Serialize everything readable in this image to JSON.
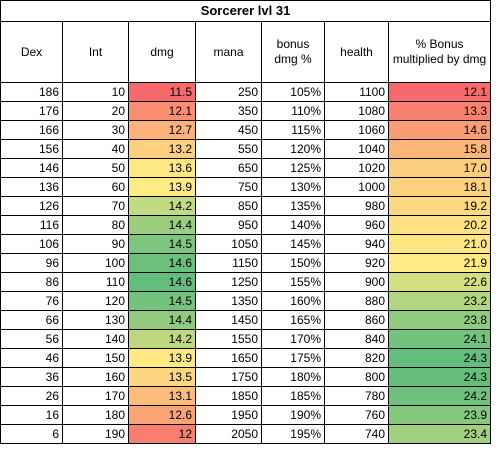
{
  "title": "Sorcerer lvl 31",
  "headers": [
    "Dex",
    "Int",
    "dmg",
    "mana",
    "bonus dmg %",
    "health",
    "% Bonus multiplied by dmg"
  ],
  "rows": [
    {
      "dex": "186",
      "int": "10",
      "dmg": "11.5",
      "mana": "250",
      "bonus": "105%",
      "health": "1100",
      "mult": "12.1",
      "dmg_color": "#f8696b",
      "mult_color": "#f8696b"
    },
    {
      "dex": "176",
      "int": "20",
      "dmg": "12.1",
      "mana": "350",
      "bonus": "110%",
      "health": "1080",
      "mult": "13.3",
      "dmg_color": "#fa8e72",
      "mult_color": "#f98170"
    },
    {
      "dex": "166",
      "int": "30",
      "dmg": "12.7",
      "mana": "450",
      "bonus": "115%",
      "health": "1060",
      "mult": "14.6",
      "dmg_color": "#fcb27a",
      "mult_color": "#fa9d75"
    },
    {
      "dex": "156",
      "int": "40",
      "dmg": "13.2",
      "mana": "550",
      "bonus": "120%",
      "health": "1040",
      "mult": "15.8",
      "dmg_color": "#fdd07f",
      "mult_color": "#fbb579"
    },
    {
      "dex": "146",
      "int": "50",
      "dmg": "13.6",
      "mana": "650",
      "bonus": "125%",
      "health": "1020",
      "mult": "17.0",
      "dmg_color": "#fee883",
      "mult_color": "#fccd7e"
    },
    {
      "dex": "136",
      "int": "60",
      "dmg": "13.9",
      "mana": "750",
      "bonus": "130%",
      "health": "1000",
      "mult": "18.1",
      "dmg_color": "#ffeb84",
      "mult_color": "#fdd27f"
    },
    {
      "dex": "126",
      "int": "70",
      "dmg": "14.2",
      "mana": "850",
      "bonus": "135%",
      "health": "980",
      "mult": "19.2",
      "dmg_color": "#c2da81",
      "mult_color": "#fed881"
    },
    {
      "dex": "116",
      "int": "80",
      "dmg": "14.4",
      "mana": "950",
      "bonus": "140%",
      "health": "960",
      "mult": "20.2",
      "dmg_color": "#9bce7f",
      "mult_color": "#fee182"
    },
    {
      "dex": "106",
      "int": "90",
      "dmg": "14.5",
      "mana": "1050",
      "bonus": "145%",
      "health": "940",
      "mult": "21.0",
      "dmg_color": "#7dc67d",
      "mult_color": "#ffe683"
    },
    {
      "dex": "96",
      "int": "100",
      "dmg": "14.6",
      "mana": "1150",
      "bonus": "150%",
      "health": "920",
      "mult": "21.9",
      "dmg_color": "#6bc17c",
      "mult_color": "#ffeb84"
    },
    {
      "dex": "86",
      "int": "110",
      "dmg": "14.6",
      "mana": "1250",
      "bonus": "155%",
      "health": "900",
      "mult": "22.6",
      "dmg_color": "#63be7b",
      "mult_color": "#d4df82"
    },
    {
      "dex": "76",
      "int": "120",
      "dmg": "14.5",
      "mana": "1350",
      "bonus": "160%",
      "health": "880",
      "mult": "23.2",
      "dmg_color": "#74c37d",
      "mult_color": "#b2d580"
    },
    {
      "dex": "66",
      "int": "130",
      "dmg": "14.4",
      "mana": "1450",
      "bonus": "165%",
      "health": "860",
      "mult": "23.8",
      "dmg_color": "#92cb7e",
      "mult_color": "#8ecb7e"
    },
    {
      "dex": "56",
      "int": "140",
      "dmg": "14.2",
      "mana": "1550",
      "bonus": "170%",
      "health": "840",
      "mult": "24.1",
      "dmg_color": "#bdd881",
      "mult_color": "#74c37d"
    },
    {
      "dex": "46",
      "int": "150",
      "dmg": "13.9",
      "mana": "1650",
      "bonus": "175%",
      "health": "820",
      "mult": "24.3",
      "dmg_color": "#fee983",
      "mult_color": "#63be7b"
    },
    {
      "dex": "36",
      "int": "160",
      "dmg": "13.5",
      "mana": "1750",
      "bonus": "180%",
      "health": "800",
      "mult": "24.3",
      "dmg_color": "#fdd680",
      "mult_color": "#65bf7b"
    },
    {
      "dex": "26",
      "int": "170",
      "dmg": "13.1",
      "mana": "1850",
      "bonus": "185%",
      "health": "780",
      "mult": "24.2",
      "dmg_color": "#fcbc7b",
      "mult_color": "#6ec17c"
    },
    {
      "dex": "16",
      "int": "180",
      "dmg": "12.6",
      "mana": "1950",
      "bonus": "190%",
      "health": "760",
      "mult": "23.9",
      "dmg_color": "#fba476",
      "mult_color": "#84c87d"
    },
    {
      "dex": "6",
      "int": "190",
      "dmg": "12",
      "mana": "2050",
      "bonus": "195%",
      "health": "740",
      "mult": "23.4",
      "dmg_color": "#f97e6f",
      "mult_color": "#a2d07f"
    }
  ]
}
